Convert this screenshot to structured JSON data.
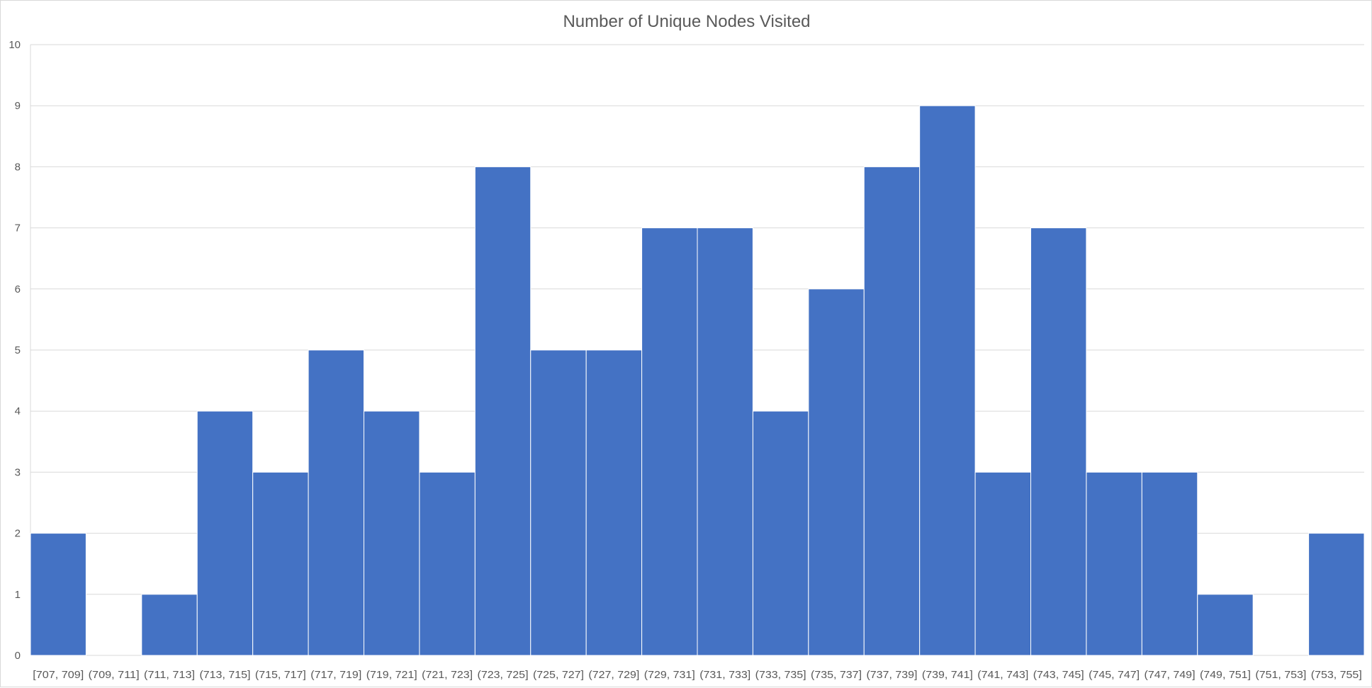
{
  "chart_data": {
    "type": "bar",
    "title": "Number of Unique Nodes Visited",
    "xlabel": "",
    "ylabel": "",
    "categories": [
      "[707, 709]",
      "(709, 711]",
      "(711, 713]",
      "(713, 715]",
      "(715, 717]",
      "(717, 719]",
      "(719, 721]",
      "(721, 723]",
      "(723, 725]",
      "(725, 727]",
      "(727, 729]",
      "(729, 731]",
      "(731, 733]",
      "(733, 735]",
      "(735, 737]",
      "(737, 739]",
      "(739, 741]",
      "(741, 743]",
      "(743, 745]",
      "(745, 747]",
      "(747, 749]",
      "(749, 751]",
      "(751, 753]",
      "(753, 755]"
    ],
    "values": [
      2,
      0,
      1,
      4,
      3,
      5,
      4,
      3,
      8,
      5,
      5,
      7,
      7,
      4,
      6,
      8,
      9,
      3,
      7,
      3,
      3,
      1,
      0,
      2
    ],
    "ylim": [
      0,
      10
    ],
    "yticks": [
      0,
      1,
      2,
      3,
      4,
      5,
      6,
      7,
      8,
      9,
      10
    ],
    "grid": true,
    "legend": "none",
    "bar_color": "#4472C4",
    "gridline_color": "#d9d9d9",
    "text_color": "#595959"
  }
}
